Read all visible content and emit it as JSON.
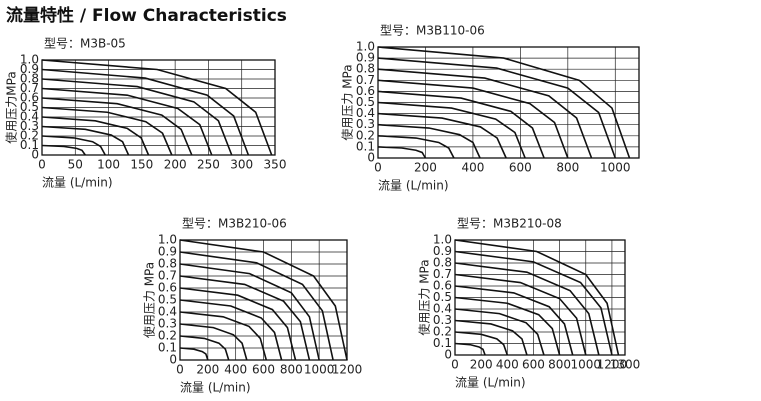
{
  "title": "流量特性 / Flow Characteristics",
  "chart_data": [
    {
      "type": "line",
      "title": "型号：M3B-05",
      "x_label": "流量 (L/min)",
      "y_label": "使用压力MPa",
      "xlim": [
        0,
        350
      ],
      "xticks": [
        0,
        50,
        100,
        150,
        200,
        250,
        300,
        350
      ],
      "ylim": [
        0,
        1
      ],
      "yticks": [
        0,
        0.1,
        0.2,
        0.3,
        0.4,
        0.5,
        0.6,
        0.7,
        0.8,
        0.9,
        {
          "value": 1,
          "label": "1.0"
        }
      ],
      "grid": true,
      "color": "#111111",
      "series": [
        {
          "x": [
            0,
            33,
            52,
            60,
            65
          ],
          "values": [
            0.1,
            0.09,
            0.07,
            0.05,
            0
          ]
        },
        {
          "x": [
            0,
            48,
            76,
            88,
            95
          ],
          "values": [
            0.2,
            0.18,
            0.14,
            0.09,
            0
          ]
        },
        {
          "x": [
            0,
            65,
            104,
            121,
            130
          ],
          "values": [
            0.3,
            0.27,
            0.21,
            0.14,
            0
          ]
        },
        {
          "x": [
            0,
            80,
            128,
            149,
            160
          ],
          "values": [
            0.4,
            0.36,
            0.28,
            0.18,
            0
          ]
        },
        {
          "x": [
            0,
            98,
            156,
            181,
            195
          ],
          "values": [
            0.5,
            0.45,
            0.35,
            0.23,
            0
          ]
        },
        {
          "x": [
            0,
            113,
            180,
            209,
            225
          ],
          "values": [
            0.6,
            0.54,
            0.42,
            0.27,
            0
          ]
        },
        {
          "x": [
            0,
            128,
            204,
            237,
            255
          ],
          "values": [
            0.7,
            0.63,
            0.49,
            0.32,
            0
          ]
        },
        {
          "x": [
            0,
            143,
            228,
            265,
            285
          ],
          "values": [
            0.8,
            0.72,
            0.56,
            0.36,
            0
          ]
        },
        {
          "x": [
            0,
            155,
            248,
            288,
            310
          ],
          "values": [
            0.9,
            0.81,
            0.63,
            0.41,
            0
          ]
        },
        {
          "x": [
            0,
            173,
            276,
            321,
            345
          ],
          "values": [
            1,
            0.9,
            0.7,
            0.45,
            0
          ]
        }
      ]
    },
    {
      "type": "line",
      "title": "型号：M3B110-06",
      "x_label": "流量 (L/min)",
      "y_label": "使用压力 MPa",
      "xlim": [
        0,
        1100
      ],
      "xticks": [
        0,
        200,
        400,
        600,
        800,
        1000
      ],
      "ylim": [
        0,
        1
      ],
      "yticks": [
        0,
        0.1,
        0.2,
        0.3,
        0.4,
        0.5,
        0.6,
        0.7,
        0.8,
        0.9,
        {
          "value": 1,
          "label": "1.0"
        }
      ],
      "grid": true,
      "color": "#111111",
      "series": [
        {
          "x": [
            0,
            100,
            160,
            186,
            200
          ],
          "values": [
            0.1,
            0.09,
            0.07,
            0.05,
            0
          ]
        },
        {
          "x": [
            0,
            160,
            256,
            298,
            320
          ],
          "values": [
            0.2,
            0.18,
            0.14,
            0.09,
            0
          ]
        },
        {
          "x": [
            0,
            215,
            344,
            400,
            430
          ],
          "values": [
            0.3,
            0.27,
            0.21,
            0.14,
            0
          ]
        },
        {
          "x": [
            0,
            270,
            432,
            502,
            540
          ],
          "values": [
            0.4,
            0.36,
            0.28,
            0.18,
            0
          ]
        },
        {
          "x": [
            0,
            310,
            496,
            577,
            620
          ],
          "values": [
            0.5,
            0.45,
            0.35,
            0.23,
            0
          ]
        },
        {
          "x": [
            0,
            350,
            560,
            651,
            700
          ],
          "values": [
            0.6,
            0.54,
            0.42,
            0.27,
            0
          ]
        },
        {
          "x": [
            0,
            400,
            640,
            744,
            800
          ],
          "values": [
            0.7,
            0.63,
            0.49,
            0.32,
            0
          ]
        },
        {
          "x": [
            0,
            450,
            720,
            837,
            900
          ],
          "values": [
            0.8,
            0.72,
            0.56,
            0.36,
            0
          ]
        },
        {
          "x": [
            0,
            500,
            800,
            930,
            1000
          ],
          "values": [
            0.9,
            0.81,
            0.63,
            0.41,
            0
          ]
        },
        {
          "x": [
            0,
            530,
            848,
            986,
            1060
          ],
          "values": [
            1,
            0.9,
            0.7,
            0.45,
            0
          ]
        }
      ]
    },
    {
      "type": "line",
      "title": "型号：M3B210-06",
      "x_label": "流量 (L/min)",
      "y_label": "使用压力 MPa",
      "xlim": [
        0,
        1200
      ],
      "xticks": [
        0,
        200,
        400,
        600,
        800,
        1000,
        1200
      ],
      "ylim": [
        0,
        1
      ],
      "yticks": [
        0,
        0.1,
        0.2,
        0.3,
        0.4,
        0.5,
        0.6,
        0.7,
        0.8,
        0.9,
        {
          "value": 1,
          "label": "1.0"
        }
      ],
      "grid": true,
      "color": "#111111",
      "series": [
        {
          "x": [
            0,
            100,
            160,
            186,
            200
          ],
          "values": [
            0.1,
            0.09,
            0.07,
            0.05,
            0
          ]
        },
        {
          "x": [
            0,
            175,
            280,
            326,
            350
          ],
          "values": [
            0.2,
            0.18,
            0.14,
            0.09,
            0
          ]
        },
        {
          "x": [
            0,
            240,
            384,
            446,
            480
          ],
          "values": [
            0.3,
            0.27,
            0.21,
            0.14,
            0
          ]
        },
        {
          "x": [
            0,
            310,
            496,
            577,
            620
          ],
          "values": [
            0.4,
            0.36,
            0.28,
            0.18,
            0
          ]
        },
        {
          "x": [
            0,
            365,
            584,
            679,
            730
          ],
          "values": [
            0.5,
            0.45,
            0.35,
            0.23,
            0
          ]
        },
        {
          "x": [
            0,
            415,
            664,
            772,
            830
          ],
          "values": [
            0.6,
            0.54,
            0.42,
            0.27,
            0
          ]
        },
        {
          "x": [
            0,
            465,
            744,
            865,
            930
          ],
          "values": [
            0.7,
            0.63,
            0.49,
            0.32,
            0
          ]
        },
        {
          "x": [
            0,
            500,
            800,
            930,
            1000
          ],
          "values": [
            0.8,
            0.72,
            0.56,
            0.36,
            0
          ]
        },
        {
          "x": [
            0,
            550,
            880,
            1023,
            1100
          ],
          "values": [
            0.9,
            0.81,
            0.63,
            0.41,
            0
          ]
        },
        {
          "x": [
            0,
            600,
            960,
            1116,
            1200
          ],
          "values": [
            1,
            0.9,
            0.7,
            0.45,
            0
          ]
        }
      ]
    },
    {
      "type": "line",
      "title": "型号：M3B210-08",
      "x_label": "流量 (L/min)",
      "y_label": "使用压力 MPa",
      "xlim": [
        0,
        1300
      ],
      "xticks": [
        0,
        200,
        400,
        600,
        800,
        1000,
        1200,
        1300
      ],
      "ylim": [
        0,
        1
      ],
      "yticks": [
        0,
        0.1,
        0.2,
        0.3,
        0.4,
        0.5,
        0.6,
        0.7,
        0.8,
        0.9,
        {
          "value": 1,
          "label": "1.0"
        }
      ],
      "grid": true,
      "color": "#111111",
      "series": [
        {
          "x": [
            0,
            115,
            184,
            214,
            230
          ],
          "values": [
            0.1,
            0.09,
            0.07,
            0.05,
            0
          ]
        },
        {
          "x": [
            0,
            200,
            320,
            372,
            400
          ],
          "values": [
            0.2,
            0.18,
            0.14,
            0.09,
            0
          ]
        },
        {
          "x": [
            0,
            275,
            440,
            512,
            550
          ],
          "values": [
            0.3,
            0.27,
            0.21,
            0.14,
            0
          ]
        },
        {
          "x": [
            0,
            340,
            544,
            632,
            680
          ],
          "values": [
            0.4,
            0.36,
            0.28,
            0.18,
            0
          ]
        },
        {
          "x": [
            0,
            400,
            640,
            744,
            800
          ],
          "values": [
            0.5,
            0.45,
            0.35,
            0.23,
            0
          ]
        },
        {
          "x": [
            0,
            450,
            720,
            837,
            900
          ],
          "values": [
            0.6,
            0.54,
            0.42,
            0.27,
            0
          ]
        },
        {
          "x": [
            0,
            500,
            800,
            930,
            1000
          ],
          "values": [
            0.7,
            0.63,
            0.49,
            0.32,
            0
          ]
        },
        {
          "x": [
            0,
            550,
            880,
            1023,
            1100
          ],
          "values": [
            0.8,
            0.72,
            0.56,
            0.36,
            0
          ]
        },
        {
          "x": [
            0,
            600,
            960,
            1116,
            1200
          ],
          "values": [
            0.9,
            0.81,
            0.63,
            0.41,
            0
          ]
        },
        {
          "x": [
            0,
            625,
            1000,
            1163,
            1250
          ],
          "values": [
            1,
            0.9,
            0.7,
            0.45,
            0
          ]
        }
      ]
    }
  ]
}
